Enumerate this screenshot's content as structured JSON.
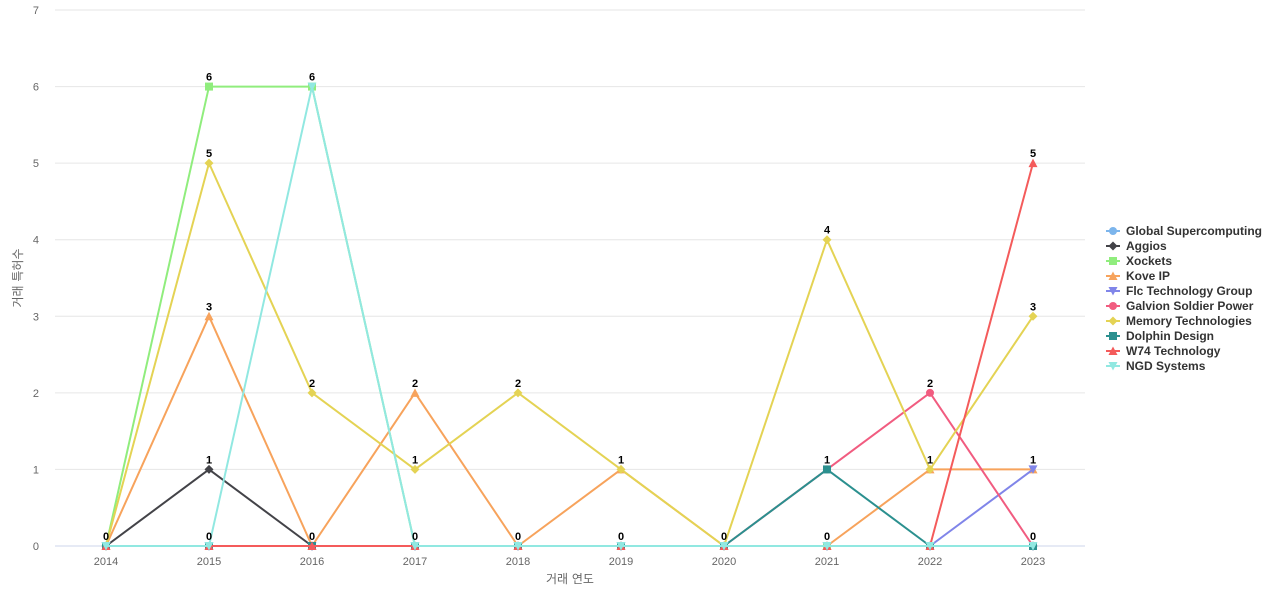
{
  "chart_data": {
    "type": "line",
    "xlabel": "거래 연도",
    "ylabel": "거래 특허수",
    "categories": [
      "2014",
      "2015",
      "2016",
      "2017",
      "2018",
      "2019",
      "2020",
      "2021",
      "2022",
      "2023"
    ],
    "ylim": [
      0,
      7
    ],
    "yticks": [
      0,
      1,
      2,
      3,
      4,
      5,
      6,
      7
    ],
    "grid": true,
    "legend_position": "right",
    "series": [
      {
        "name": "Global Supercomputing",
        "color": "#7cb5ec",
        "marker": "circle",
        "values": [
          0,
          0,
          0,
          0,
          0,
          0,
          0,
          0,
          0,
          0
        ]
      },
      {
        "name": "Aggios",
        "color": "#434348",
        "marker": "diamond",
        "values": [
          0,
          1,
          0,
          0,
          0,
          0,
          0,
          0,
          0,
          0
        ]
      },
      {
        "name": "Xockets",
        "color": "#90ed7d",
        "marker": "square",
        "values": [
          0,
          6,
          6,
          0,
          0,
          0,
          0,
          0,
          0,
          0
        ]
      },
      {
        "name": "Kove IP",
        "color": "#f7a35c",
        "marker": "triangle",
        "values": [
          0,
          3,
          0,
          2,
          0,
          1,
          0,
          0,
          1,
          1
        ]
      },
      {
        "name": "Flc Technology Group",
        "color": "#8085e9",
        "marker": "triangle-down",
        "values": [
          0,
          0,
          0,
          0,
          0,
          0,
          0,
          0,
          0,
          1
        ]
      },
      {
        "name": "Galvion Soldier Power",
        "color": "#f15c80",
        "marker": "circle",
        "values": [
          0,
          0,
          0,
          0,
          0,
          0,
          0,
          1,
          2,
          0
        ]
      },
      {
        "name": "Memory Technologies",
        "color": "#e4d354",
        "marker": "diamond",
        "values": [
          0,
          5,
          2,
          1,
          2,
          1,
          0,
          4,
          1,
          3
        ]
      },
      {
        "name": "Dolphin Design",
        "color": "#2b908f",
        "marker": "square",
        "values": [
          0,
          0,
          0,
          0,
          0,
          0,
          0,
          1,
          0,
          0
        ]
      },
      {
        "name": "W74 Technology",
        "color": "#f45b5b",
        "marker": "triangle",
        "values": [
          0,
          0,
          0,
          0,
          0,
          0,
          0,
          0,
          0,
          5
        ]
      },
      {
        "name": "NGD Systems",
        "color": "#91e8e1",
        "marker": "triangle-down",
        "values": [
          0,
          0,
          6,
          0,
          0,
          0,
          0,
          0,
          0,
          0
        ]
      }
    ],
    "data_labels": [
      {
        "category": "2014",
        "text": "0"
      },
      {
        "category": "2015",
        "text": "6"
      },
      {
        "category": "2015",
        "text": "5"
      },
      {
        "category": "2015",
        "text": "3"
      },
      {
        "category": "2015",
        "text": "1"
      },
      {
        "category": "2015",
        "text": "0"
      },
      {
        "category": "2016",
        "text": "6"
      },
      {
        "category": "2016",
        "text": "2"
      },
      {
        "category": "2016",
        "text": "0"
      },
      {
        "category": "2017",
        "text": "2"
      },
      {
        "category": "2017",
        "text": "1"
      },
      {
        "category": "2017",
        "text": "0"
      },
      {
        "category": "2018",
        "text": "2"
      },
      {
        "category": "2018",
        "text": "0"
      },
      {
        "category": "2019",
        "text": "1"
      },
      {
        "category": "2019",
        "text": "0"
      },
      {
        "category": "2020",
        "text": "0"
      },
      {
        "category": "2021",
        "text": "4"
      },
      {
        "category": "2021",
        "text": "1"
      },
      {
        "category": "2021",
        "text": "0"
      },
      {
        "category": "2022",
        "text": "2"
      },
      {
        "category": "2022",
        "text": "1"
      },
      {
        "category": "2023",
        "text": "5"
      },
      {
        "category": "2023",
        "text": "3"
      },
      {
        "category": "2023",
        "text": "1"
      },
      {
        "category": "2023",
        "text": "0"
      }
    ]
  }
}
